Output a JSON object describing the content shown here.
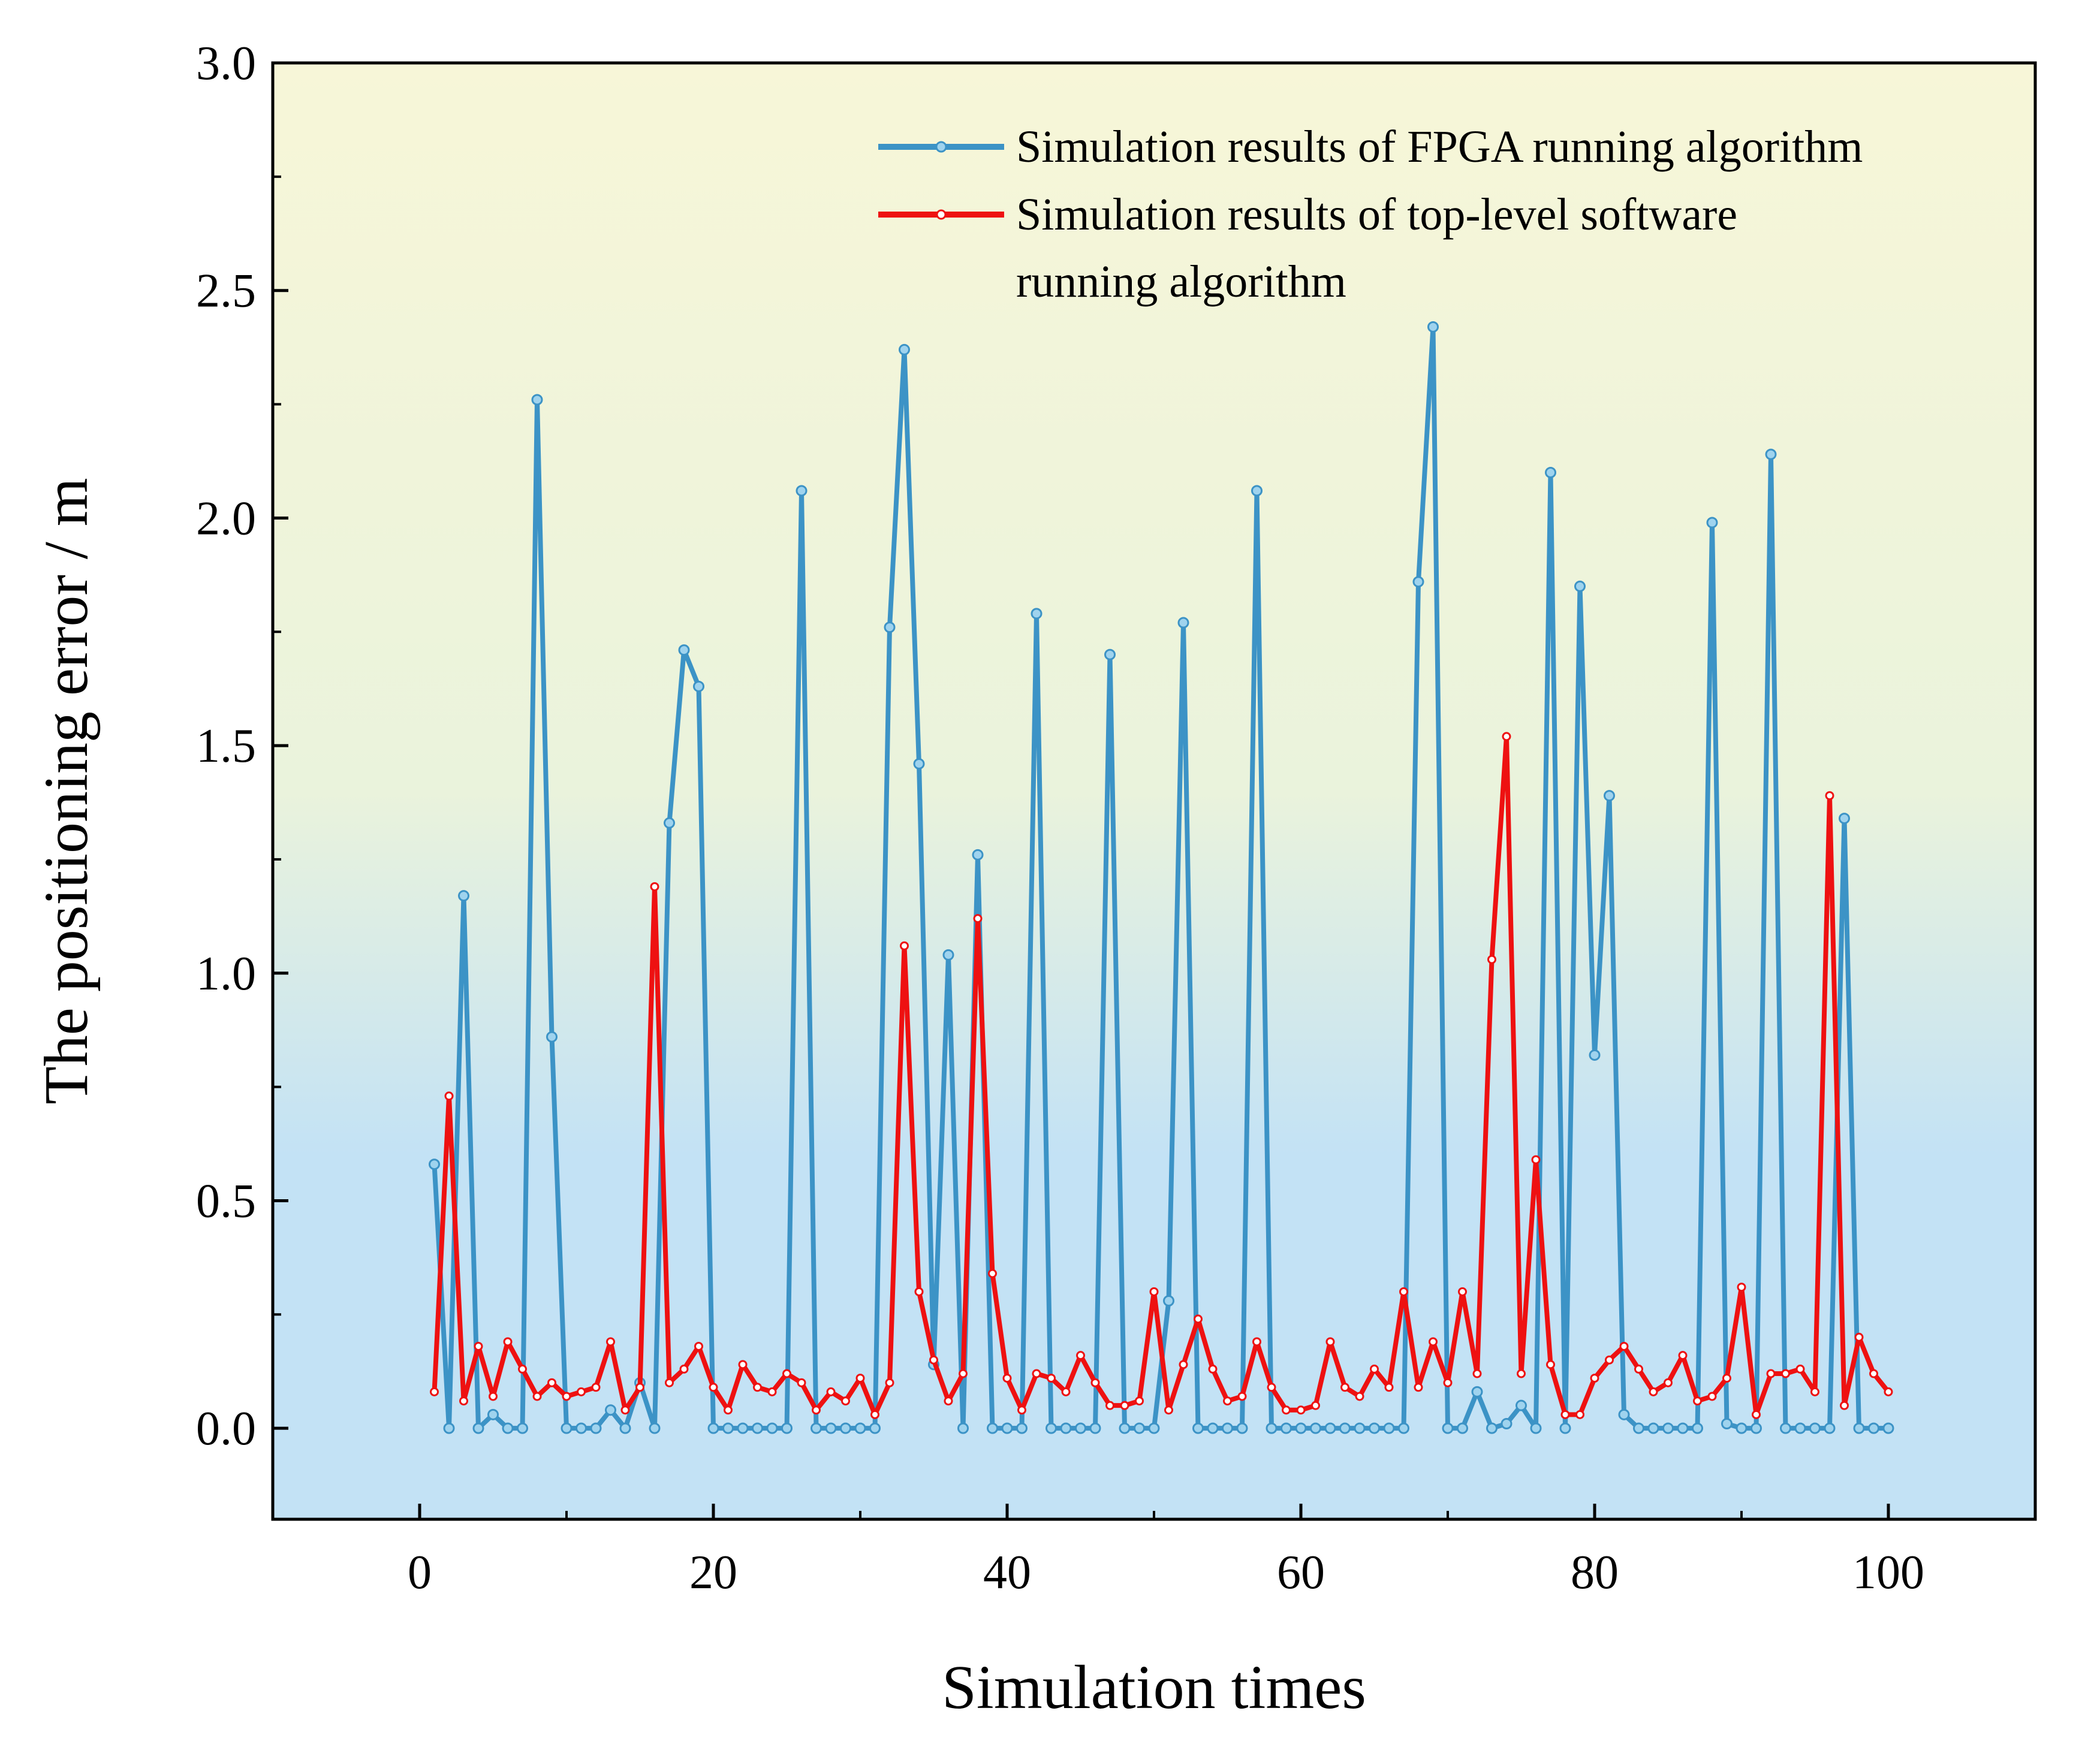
{
  "chart_data": {
    "type": "line",
    "title": "",
    "xlabel": "Simulation times",
    "ylabel": "The positioning error / m",
    "xlim": [
      -10,
      110
    ],
    "ylim": [
      -0.2,
      3.0
    ],
    "xticks": [
      0,
      20,
      40,
      60,
      80,
      100
    ],
    "xtick_labels": [
      "0",
      "20",
      "40",
      "60",
      "80",
      "100"
    ],
    "yticks": [
      0.0,
      0.5,
      1.0,
      1.5,
      2.0,
      2.5,
      3.0
    ],
    "ytick_labels": [
      "0.0",
      "0.5",
      "1.0",
      "1.5",
      "2.0",
      "2.5",
      "3.0"
    ],
    "grid": false,
    "legend_position": "top-right",
    "background_gradient": [
      "#f7f6d8",
      "#eaf3dc",
      "#c3e2f5"
    ],
    "x": [
      1,
      2,
      3,
      4,
      5,
      6,
      7,
      8,
      9,
      10,
      11,
      12,
      13,
      14,
      15,
      16,
      17,
      18,
      19,
      20,
      21,
      22,
      23,
      24,
      25,
      26,
      27,
      28,
      29,
      30,
      31,
      32,
      33,
      34,
      35,
      36,
      37,
      38,
      39,
      40,
      41,
      42,
      43,
      44,
      45,
      46,
      47,
      48,
      49,
      50,
      51,
      52,
      53,
      54,
      55,
      56,
      57,
      58,
      59,
      60,
      61,
      62,
      63,
      64,
      65,
      66,
      67,
      68,
      69,
      70,
      71,
      72,
      73,
      74,
      75,
      76,
      77,
      78,
      79,
      80,
      81,
      82,
      83,
      84,
      85,
      86,
      87,
      88,
      89,
      90,
      91,
      92,
      93,
      94,
      95,
      96,
      97,
      98,
      99,
      100
    ],
    "series": [
      {
        "name": "Simulation results of FPGA running algorithm",
        "color": "#3c93c6",
        "values": [
          0.58,
          0.0,
          1.17,
          0.0,
          0.03,
          0.0,
          0.0,
          2.26,
          0.86,
          0.0,
          0.0,
          0.0,
          0.04,
          0.0,
          0.1,
          0.0,
          1.33,
          1.71,
          1.63,
          0.0,
          0.0,
          0.0,
          0.0,
          0.0,
          0.0,
          2.06,
          0.0,
          0.0,
          0.0,
          0.0,
          0.0,
          1.76,
          2.37,
          1.46,
          0.14,
          1.04,
          0.0,
          1.26,
          0.0,
          0.0,
          0.0,
          1.79,
          0.0,
          0.0,
          0.0,
          0.0,
          1.7,
          0.0,
          0.0,
          0.0,
          0.28,
          1.77,
          0.0,
          0.0,
          0.0,
          0.0,
          2.06,
          0.0,
          0.0,
          0.0,
          0.0,
          0.0,
          0.0,
          0.0,
          0.0,
          0.0,
          0.0,
          1.86,
          2.42,
          0.0,
          0.0,
          0.08,
          0.0,
          0.01,
          0.05,
          0.0,
          2.1,
          0.0,
          1.85,
          0.82,
          1.39,
          0.03,
          0.0,
          0.0,
          0.0,
          0.0,
          0.0,
          1.99,
          0.01,
          0.0,
          0.0,
          2.14,
          0.0,
          0.0,
          0.0,
          0.0,
          1.34,
          0.0,
          0.0,
          0.0
        ]
      },
      {
        "name": "Simulation results of top-level software running algorithm",
        "name_lines": [
          "Simulation results of top-level software",
          "running algorithm"
        ],
        "color": "#ee1111",
        "values": [
          0.08,
          0.73,
          0.06,
          0.18,
          0.07,
          0.19,
          0.13,
          0.07,
          0.1,
          0.07,
          0.08,
          0.09,
          0.19,
          0.04,
          0.09,
          1.19,
          0.1,
          0.13,
          0.18,
          0.09,
          0.04,
          0.14,
          0.09,
          0.08,
          0.12,
          0.1,
          0.04,
          0.08,
          0.06,
          0.11,
          0.03,
          0.1,
          1.06,
          0.3,
          0.15,
          0.06,
          0.12,
          1.12,
          0.34,
          0.11,
          0.04,
          0.12,
          0.11,
          0.08,
          0.16,
          0.1,
          0.05,
          0.05,
          0.06,
          0.3,
          0.04,
          0.14,
          0.24,
          0.13,
          0.06,
          0.07,
          0.19,
          0.09,
          0.04,
          0.04,
          0.05,
          0.19,
          0.09,
          0.07,
          0.13,
          0.09,
          0.3,
          0.09,
          0.19,
          0.1,
          0.3,
          0.12,
          1.03,
          1.52,
          0.12,
          0.59,
          0.14,
          0.03,
          0.03,
          0.11,
          0.15,
          0.18,
          0.13,
          0.08,
          0.1,
          0.16,
          0.06,
          0.07,
          0.11,
          0.31,
          0.03,
          0.12,
          0.12,
          0.13,
          0.08,
          1.39,
          0.05,
          0.2,
          0.12,
          0.08
        ]
      }
    ]
  }
}
